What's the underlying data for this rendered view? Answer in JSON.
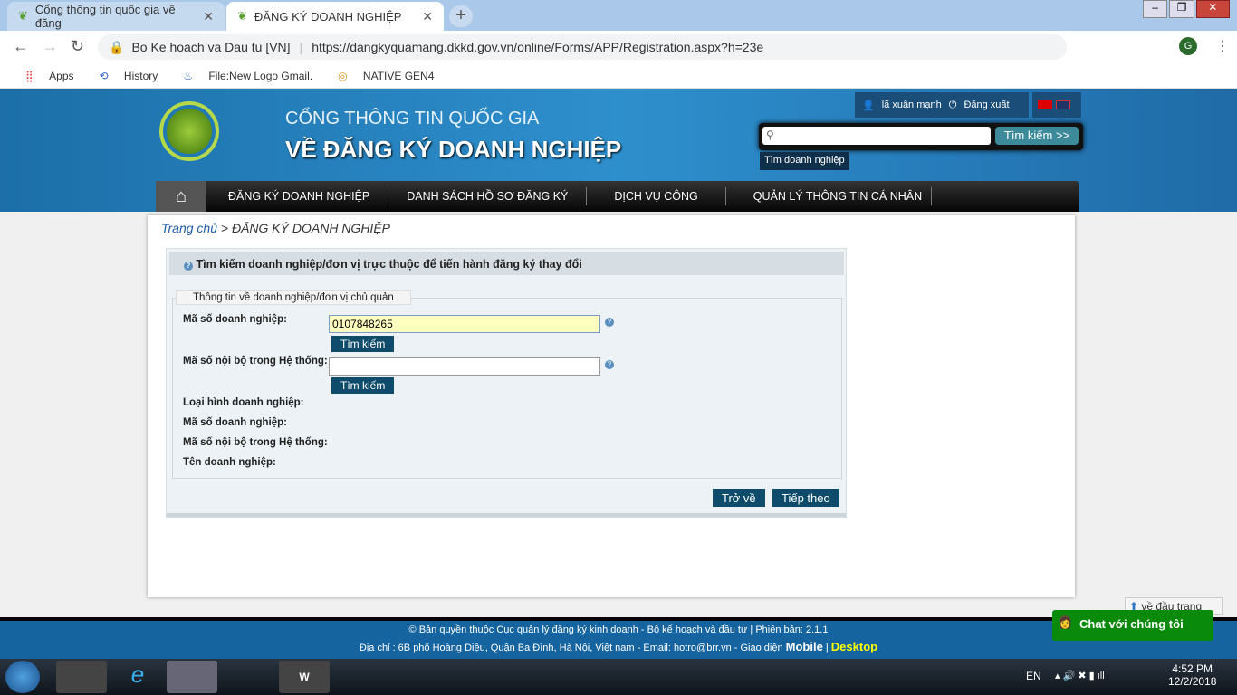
{
  "browser": {
    "tabs": [
      {
        "label": "Cổng thông tin quốc gia về đăng"
      },
      {
        "label": "ĐĂNG KÝ DOANH NGHIỆP"
      }
    ],
    "site_identity": "Bo Ke hoach va Dau tu [VN]",
    "url": "https://dangkyquamang.dkkd.gov.vn/online/Forms/APP/Registration.aspx?h=23e",
    "profile_initial": "G",
    "bookmarks": [
      {
        "label": "Apps"
      },
      {
        "label": "History"
      },
      {
        "label": "File:New Logo Gmail."
      },
      {
        "label": "NATIVE GEN4"
      }
    ]
  },
  "header": {
    "title_line1": "CỔNG THÔNG TIN QUỐC GIA",
    "title_line2": "VỀ ĐĂNG KÝ DOANH NGHIỆP",
    "user": "lã xuân mạnh",
    "logout": "Đăng xuất",
    "search_button": "Tìm kiếm >>",
    "search_placeholder": "",
    "search_hint": "Tìm doanh nghiệp"
  },
  "nav": [
    {
      "label": "ĐĂNG KÝ DOANH NGHIỆP"
    },
    {
      "label": "DANH SÁCH HỒ SƠ ĐĂNG KÝ"
    },
    {
      "label": "DỊCH VỤ CÔNG"
    },
    {
      "label": "QUẢN LÝ THÔNG TIN CÁ NHÂN"
    }
  ],
  "breadcrumb": {
    "home": "Trang chủ",
    "sep": " > ",
    "current": "ĐĂNG KÝ DOANH NGHIỆP"
  },
  "form": {
    "panel_title": "Tìm kiếm doanh nghiệp/đơn vị trực thuộc để tiến hành đăng ký thay đổi",
    "legend": "Thông tin về doanh nghiệp/đơn vị chủ quản",
    "ma_so_label": "Mã số doanh nghiệp:",
    "ma_so_value": "0107848265",
    "search1": "Tìm kiếm",
    "noi_bo_label": "Mã số nội bộ trong Hệ thống:",
    "noi_bo_value": "",
    "search2": "Tìm kiếm",
    "info": [
      {
        "label": "Loại hình doanh nghiệp:"
      },
      {
        "label": "Mã số doanh nghiệp:"
      },
      {
        "label": "Mã số nội bộ trong Hệ thống:"
      },
      {
        "label": "Tên doanh nghiệp:"
      }
    ],
    "back": "Trở về",
    "next": "Tiếp theo"
  },
  "back_to_top": "về đầu trang",
  "chat": "Chat với chúng tôi",
  "footer": {
    "line1": "© Bản quyền thuộc Cục quản lý đăng ký kinh doanh - Bộ kế hoạch và đầu tư | Phiên bản: 2.1.1",
    "line2": "Địa chỉ : 6B phố Hoàng Diệu, Quận Ba Đình, Hà Nội, Việt nam - Email: hotro@brr.vn - Giao diện ",
    "mobile": "Mobile",
    "sep": " | ",
    "desktop": "Desktop"
  },
  "taskbar": {
    "lang": "EN",
    "time": "4:52 PM",
    "date": "12/2/2018"
  },
  "colors": {
    "header": "#2e8fcd",
    "nav": "#050505",
    "button": "#0f4b6b",
    "footer": "#15649f",
    "chat": "#0a8a0a",
    "input_highlight": "#ffffc0"
  }
}
